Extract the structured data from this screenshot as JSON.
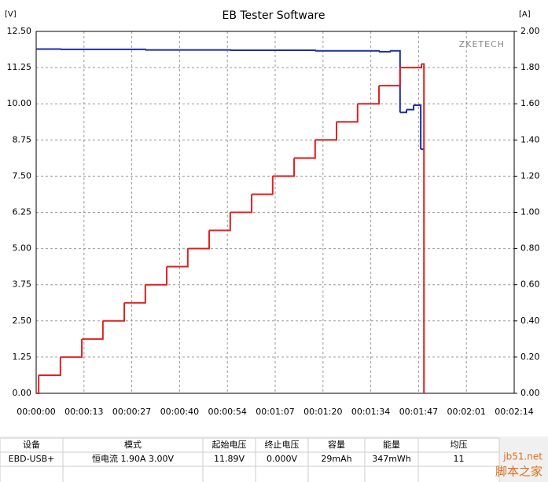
{
  "chart_data": {
    "type": "line",
    "title": "EB Tester Software",
    "y_label": "[V]",
    "y2_label": "[A]",
    "annotation": "ZKETECH",
    "step": "post",
    "grid": true,
    "xlim": [
      0,
      134
    ],
    "xticks": [
      {
        "value": 0,
        "label": "00:00:00"
      },
      {
        "value": 13.4,
        "label": "00:00:13"
      },
      {
        "value": 26.8,
        "label": "00:00:27"
      },
      {
        "value": 40.2,
        "label": "00:00:40"
      },
      {
        "value": 53.6,
        "label": "00:00:54"
      },
      {
        "value": 67,
        "label": "00:01:07"
      },
      {
        "value": 80.4,
        "label": "00:01:20"
      },
      {
        "value": 93.8,
        "label": "00:01:34"
      },
      {
        "value": 107.2,
        "label": "00:01:47"
      },
      {
        "value": 120.6,
        "label": "00:02:01"
      },
      {
        "value": 134,
        "label": "00:02:14"
      }
    ],
    "ylim": [
      0,
      12.5
    ],
    "yticks": [
      {
        "value": 0,
        "label": "0.00"
      },
      {
        "value": 1.25,
        "label": "1.25"
      },
      {
        "value": 2.5,
        "label": "2.50"
      },
      {
        "value": 3.75,
        "label": "3.75"
      },
      {
        "value": 5,
        "label": "5.00"
      },
      {
        "value": 6.25,
        "label": "6.25"
      },
      {
        "value": 7.5,
        "label": "7.50"
      },
      {
        "value": 8.75,
        "label": "8.75"
      },
      {
        "value": 10,
        "label": "10.00"
      },
      {
        "value": 11.25,
        "label": "11.25"
      },
      {
        "value": 12.5,
        "label": "12.50"
      }
    ],
    "y2lim": [
      0,
      2
    ],
    "y2ticks": [
      {
        "value": 0,
        "label": "0.00"
      },
      {
        "value": 0.2,
        "label": "0.20"
      },
      {
        "value": 0.4,
        "label": "0.40"
      },
      {
        "value": 0.6,
        "label": "0.60"
      },
      {
        "value": 0.8,
        "label": "0.80"
      },
      {
        "value": 1,
        "label": "1.00"
      },
      {
        "value": 1.2,
        "label": "1.20"
      },
      {
        "value": 1.4,
        "label": "1.40"
      },
      {
        "value": 1.6,
        "label": "1.60"
      },
      {
        "value": 1.8,
        "label": "1.80"
      },
      {
        "value": 2,
        "label": "2.00"
      }
    ],
    "series": [
      {
        "color": "#1c2ea6",
        "x": [
          0,
          6.8,
          30.6,
          54.4,
          78.2,
          96.1,
          99.2,
          102.0,
          103.8,
          105.8,
          107.8,
          108.7
        ],
        "values": [
          11.89,
          11.88,
          11.86,
          11.85,
          11.83,
          11.8,
          11.83,
          9.7,
          9.8,
          9.95,
          8.43,
          8.43
        ]
      },
      {
        "color": "#e02020",
        "axis": "y2",
        "x": [
          0,
          0.7,
          6.8,
          12.8,
          18.7,
          24.7,
          30.6,
          36.6,
          42.5,
          48.5,
          54.4,
          60.4,
          66.3,
          72.3,
          78.2,
          84.2,
          90.1,
          96.1,
          102.0,
          108.0,
          108.7
        ],
        "values": [
          0,
          0.1,
          0.2,
          0.3,
          0.4,
          0.5,
          0.6,
          0.7,
          0.8,
          0.9,
          1.0,
          1.1,
          1.2,
          1.3,
          1.4,
          1.5,
          1.6,
          1.7,
          1.8,
          1.82,
          0
        ]
      }
    ]
  },
  "table": {
    "headers": [
      "设备",
      "模式",
      "起始电压",
      "终止电压",
      "容量",
      "能量",
      "均压"
    ],
    "rows": [
      [
        "EBD-USB+",
        "恒电流  1.90A  3.00V",
        "11.89V",
        "0.000V",
        "29mAh",
        "347mWh",
        "11"
      ]
    ]
  },
  "watermark": [
    "jb51.net",
    "脚本之家"
  ]
}
